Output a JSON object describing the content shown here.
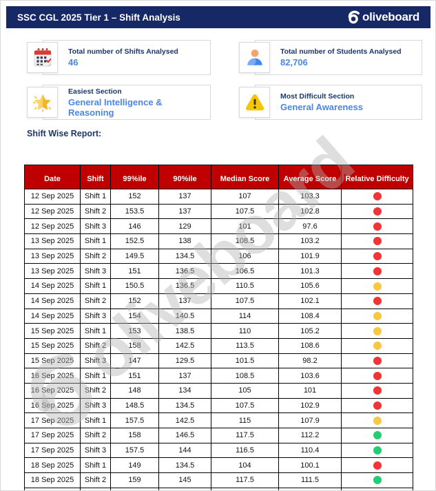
{
  "header": {
    "title": "SSC CGL 2025 Tier 1 – Shift Analysis",
    "brand": "oliveboard"
  },
  "stats": [
    {
      "icon": "calendar-icon",
      "label": "Total number of Shifts Analysed",
      "value": "46"
    },
    {
      "icon": "students-icon",
      "label": "Total number of Students Analysed",
      "value": "82,706"
    },
    {
      "icon": "star-icon",
      "label": "Easiest Section",
      "value": "General Intelligence & Reasoning"
    },
    {
      "icon": "warning-icon",
      "label": "Most Difficult Section",
      "value": "General Awareness"
    }
  ],
  "report": {
    "heading": "Shift Wise Report:",
    "columns": [
      "Date",
      "Shift",
      "99%ile",
      "90%ile",
      "Median Score",
      "Average Score",
      "Relative Difficulty"
    ],
    "rows": [
      [
        "12 Sep 2025",
        "Shift 1",
        "152",
        "137",
        "107",
        "103.3",
        "red"
      ],
      [
        "12 Sep 2025",
        "Shift 2",
        "153.5",
        "137",
        "107.5",
        "102.8",
        "red"
      ],
      [
        "12 Sep 2025",
        "Shift 3",
        "146",
        "129",
        "101",
        "97.6",
        "red"
      ],
      [
        "13 Sep 2025",
        "Shift 1",
        "152.5",
        "138",
        "108.5",
        "103.2",
        "red"
      ],
      [
        "13 Sep 2025",
        "Shift 2",
        "149.5",
        "134.5",
        "106",
        "101.9",
        "red"
      ],
      [
        "13 Sep 2025",
        "Shift 3",
        "151",
        "136.5",
        "106.5",
        "101.3",
        "red"
      ],
      [
        "14 Sep 2025",
        "Shift 1",
        "150.5",
        "136.5",
        "110.5",
        "105.6",
        "yellow"
      ],
      [
        "14 Sep 2025",
        "Shift 2",
        "152",
        "137",
        "107.5",
        "102.1",
        "red"
      ],
      [
        "14 Sep 2025",
        "Shift 3",
        "154",
        "140.5",
        "114",
        "108.4",
        "yellow"
      ],
      [
        "15 Sep 2025",
        "Shift 1",
        "153",
        "138.5",
        "110",
        "105.2",
        "yellow"
      ],
      [
        "15 Sep 2025",
        "Shift 2",
        "158",
        "142.5",
        "113.5",
        "108.6",
        "yellow"
      ],
      [
        "15 Sep 2025",
        "Shift 3",
        "147",
        "129.5",
        "101.5",
        "98.2",
        "red"
      ],
      [
        "16 Sep 2025",
        "Shift 1",
        "151",
        "137",
        "108.5",
        "103.6",
        "red"
      ],
      [
        "16 Sep 2025",
        "Shift 2",
        "148",
        "134",
        "105",
        "101",
        "red"
      ],
      [
        "16 Sep 2025",
        "Shift 3",
        "148.5",
        "134.5",
        "107.5",
        "102.9",
        "red"
      ],
      [
        "17 Sep 2025",
        "Shift 1",
        "157.5",
        "142.5",
        "115",
        "107.9",
        "yellow"
      ],
      [
        "17 Sep 2025",
        "Shift 2",
        "158",
        "146.5",
        "117.5",
        "112.2",
        "green"
      ],
      [
        "17 Sep 2025",
        "Shift 3",
        "157.5",
        "144",
        "116.5",
        "110.4",
        "green"
      ],
      [
        "18 Sep 2025",
        "Shift 1",
        "149",
        "134.5",
        "104",
        "100.1",
        "red"
      ],
      [
        "18 Sep 2025",
        "Shift 2",
        "159",
        "145",
        "117.5",
        "111.5",
        "green"
      ]
    ]
  },
  "watermark": {
    "text": "oliveboard"
  },
  "colors": {
    "navy": "#162866",
    "accent_blue": "#4a86e8",
    "table_header_red": "#c00000",
    "difficulty": {
      "red": "#f13434",
      "yellow": "#f7c843",
      "green": "#21ce73"
    }
  }
}
